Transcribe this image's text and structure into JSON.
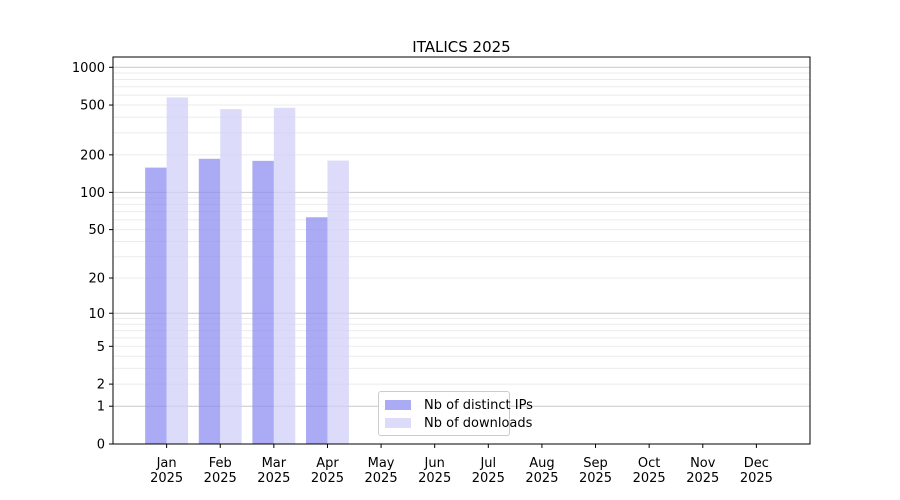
{
  "chart_data": {
    "type": "bar",
    "title": "ITALICS 2025",
    "categories": [
      "Jan",
      "Feb",
      "Mar",
      "Apr",
      "May",
      "Jun",
      "Jul",
      "Aug",
      "Sep",
      "Oct",
      "Nov",
      "Dec"
    ],
    "x_year_label": "2025",
    "series": [
      {
        "name": "Nb of distinct IPs",
        "color": "#8e8ef2",
        "values": [
          158,
          186,
          179,
          63,
          0,
          0,
          0,
          0,
          0,
          0,
          0,
          0
        ]
      },
      {
        "name": "Nb of downloads",
        "color": "#d0d0f8",
        "values": [
          575,
          464,
          475,
          180,
          0,
          0,
          0,
          0,
          0,
          0,
          0,
          0
        ]
      }
    ],
    "y_scale": "log10(1+x)",
    "ylim": [
      0,
      1000
    ],
    "y_ticks": [
      1000,
      500,
      200,
      100,
      50,
      20,
      10,
      5,
      2,
      1,
      0
    ],
    "grid": true,
    "legend_position": "lower center",
    "colors": {
      "bar_opacity": 0.75,
      "grid_major": "#c8c8c8",
      "grid_minor": "#ebebeb",
      "axis": "#000000",
      "background": "#ffffff"
    }
  }
}
